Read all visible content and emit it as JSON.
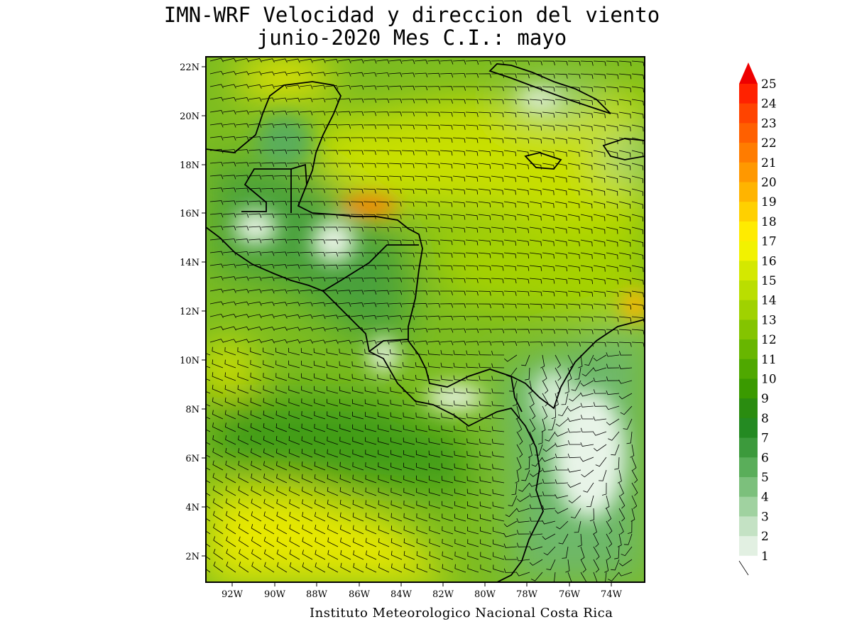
{
  "title_line1": "IMN-WRF Velocidad y direccion del viento",
  "title_line2": "junio-2020 Mes C.I.: mayo",
  "footer": "Instituto Meteorologico Nacional Costa Rica",
  "axes": {
    "lon_ticks": [
      "92W",
      "90W",
      "88W",
      "86W",
      "84W",
      "82W",
      "80W",
      "78W",
      "76W",
      "74W"
    ],
    "lat_ticks": [
      "22N",
      "20N",
      "18N",
      "16N",
      "14N",
      "12N",
      "10N",
      "8N",
      "6N",
      "4N",
      "2N"
    ],
    "lon_range": [
      -93.2,
      -72.1
    ],
    "lat_range": [
      1.0,
      22.4
    ]
  },
  "colorbar": {
    "labels": [
      "25",
      "24",
      "23",
      "22",
      "21",
      "20",
      "19",
      "18",
      "17",
      "16",
      "15",
      "14",
      "13",
      "12",
      "11",
      "10",
      "9",
      "8",
      "7",
      "6",
      "5",
      "4",
      "3",
      "2",
      "1"
    ],
    "colors": [
      "#ff2200",
      "#ff4400",
      "#ff6000",
      "#ff7c00",
      "#ff9800",
      "#ffb400",
      "#ffd000",
      "#ffeb00",
      "#f2f200",
      "#d4e800",
      "#bade00",
      "#a0d200",
      "#84c400",
      "#68b600",
      "#4fa800",
      "#3a9a00",
      "#2a8c10",
      "#248a22",
      "#3c9a3c",
      "#5aae5a",
      "#7cc07c",
      "#a0d2a0",
      "#c4e2c4",
      "#e2f0e2",
      "#ffffff"
    ],
    "arrow_color": "#ee0000"
  },
  "colors": {
    "high_wind": "#ff6000",
    "moderate_wind": "#d4e800",
    "low_wind": "#3c9a3c",
    "calm": "#ffffff",
    "coastline": "#000000",
    "barbs": "#000000"
  }
}
